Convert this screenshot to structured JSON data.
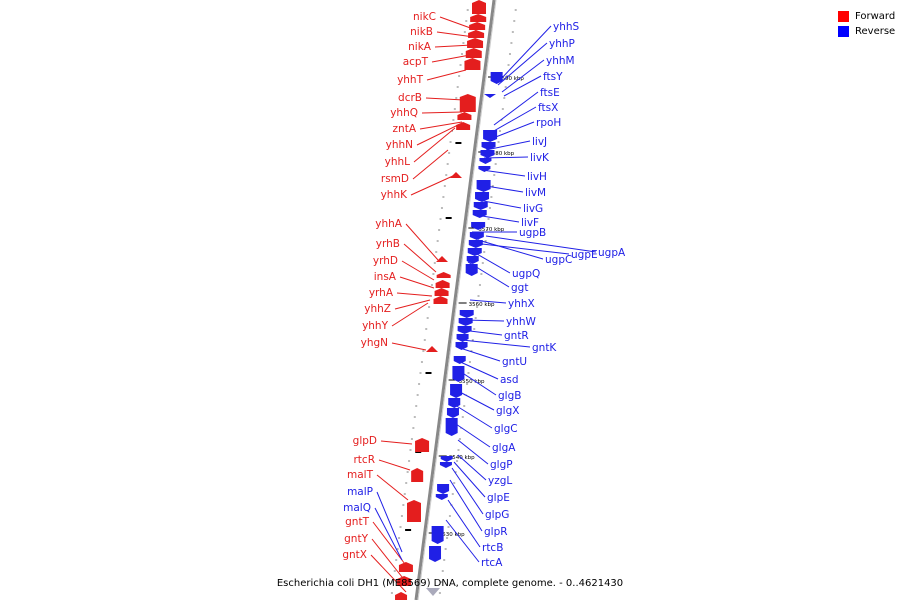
{
  "legend": [
    {
      "label": "Forward",
      "color": "#ff0000"
    },
    {
      "label": "Reverse",
      "color": "#0000ff"
    }
  ],
  "caption": "Escherichia coli DH1 (ME8569) DNA, complete genome. - 0..4621430",
  "colors": {
    "forward": "#e41e1e",
    "reverse": "#2020e6",
    "backbone": "#888888"
  },
  "kbp_ticks": [
    "3590 kbp",
    "3580 kbp",
    "3570 kbp",
    "3560 kbp",
    "3550 kbp",
    "3540 kbp",
    "3530 kbp"
  ],
  "forward_genes": [
    "nikC",
    "nikB",
    "nikA",
    "acpT",
    "yhhT",
    "dcrB",
    "yhhQ",
    "zntA",
    "yhhN",
    "yhhL",
    "rsmD",
    "yhhK",
    "yhhA",
    "yrhB",
    "yrhD",
    "insA",
    "yrhA",
    "yhhZ",
    "yhhY",
    "yhgN",
    "glpD",
    "rtcR",
    "malT",
    "gntT",
    "gntY",
    "gntX"
  ],
  "reverse_genes_left": [
    "malP",
    "malQ"
  ],
  "reverse_genes": [
    "yhhS",
    "yhhP",
    "yhhM",
    "ftsY",
    "ftsE",
    "ftsX",
    "rpoH",
    "livJ",
    "livK",
    "livH",
    "livM",
    "livG",
    "livF",
    "ugpB",
    "ugpC",
    "ugpE",
    "ugpA",
    "ugpQ",
    "ggt",
    "yhhX",
    "yhhW",
    "gntR",
    "gntK",
    "gntU",
    "asd",
    "glgB",
    "glgX",
    "glgC",
    "glgA",
    "glgP",
    "yzgL",
    "glpE",
    "glpG",
    "glpR",
    "rtcB",
    "rtcA"
  ]
}
